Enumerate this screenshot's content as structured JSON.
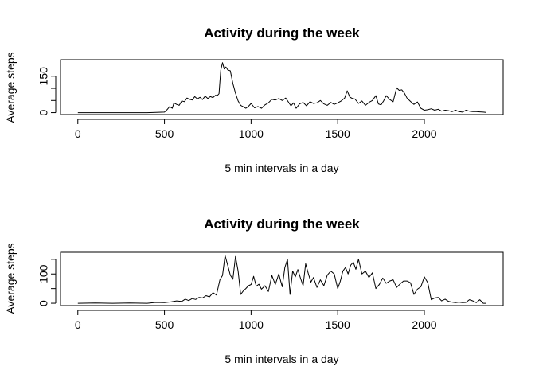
{
  "chart_data": [
    {
      "type": "line",
      "title": "Activity during the  week",
      "xlabel": "5 min intervals in a day",
      "ylabel": "Average steps",
      "xlim": [
        -100,
        2455
      ],
      "ylim": [
        -8,
        218
      ],
      "xticks": [
        0,
        500,
        1000,
        1500,
        2000
      ],
      "yticks": [
        0,
        50,
        100,
        150
      ],
      "yticklabels": [
        "0",
        "",
        "",
        "150"
      ],
      "grid": false,
      "series": [
        {
          "x": [
            0,
            100,
            200,
            300,
            400,
            500,
            515,
            530,
            545,
            555,
            570,
            585,
            600,
            615,
            630,
            645,
            660,
            675,
            690,
            705,
            720,
            735,
            750,
            765,
            780,
            795,
            805,
            815,
            825,
            835,
            845,
            855,
            865,
            880,
            895,
            910,
            925,
            940,
            955,
            970,
            985,
            1000,
            1020,
            1040,
            1060,
            1080,
            1100,
            1120,
            1140,
            1160,
            1180,
            1200,
            1215,
            1230,
            1245,
            1260,
            1280,
            1300,
            1320,
            1340,
            1360,
            1380,
            1400,
            1420,
            1440,
            1460,
            1480,
            1500,
            1520,
            1540,
            1555,
            1570,
            1585,
            1600,
            1620,
            1640,
            1660,
            1680,
            1700,
            1720,
            1735,
            1750,
            1765,
            1780,
            1800,
            1820,
            1840,
            1855,
            1870,
            1885,
            1900,
            1920,
            1940,
            1960,
            1980,
            2000,
            2020,
            2040,
            2060,
            2080,
            2100,
            2120,
            2140,
            2160,
            2180,
            2200,
            2220,
            2240,
            2260,
            2280,
            2300,
            2320,
            2340,
            2355
          ],
          "y": [
            0,
            0,
            0,
            0,
            0,
            2,
            12,
            25,
            18,
            40,
            34,
            30,
            48,
            45,
            60,
            55,
            52,
            66,
            57,
            63,
            54,
            68,
            58,
            66,
            62,
            72,
            70,
            78,
            175,
            206,
            180,
            188,
            176,
            172,
            120,
            80,
            48,
            30,
            24,
            18,
            26,
            38,
            20,
            25,
            18,
            32,
            40,
            55,
            52,
            58,
            50,
            60,
            44,
            28,
            40,
            18,
            36,
            42,
            28,
            45,
            38,
            40,
            50,
            36,
            30,
            42,
            34,
            40,
            48,
            60,
            90,
            64,
            58,
            56,
            38,
            48,
            30,
            42,
            50,
            70,
            36,
            32,
            48,
            70,
            54,
            45,
            102,
            92,
            94,
            80,
            60,
            46,
            34,
            44,
            18,
            10,
            12,
            16,
            10,
            14,
            6,
            10,
            8,
            4,
            10,
            4,
            2,
            10,
            6,
            4,
            4,
            3,
            2,
            1
          ]
        }
      ]
    },
    {
      "type": "line",
      "title": "Activity during the  week",
      "xlabel": "5 min intervals in a day",
      "ylabel": "Average steps",
      "xlim": [
        -100,
        2455
      ],
      "ylim": [
        -8,
        174
      ],
      "xticks": [
        0,
        500,
        1000,
        1500,
        2000
      ],
      "yticks": [
        0,
        50,
        100,
        150
      ],
      "yticklabels": [
        "0",
        "",
        "100",
        ""
      ],
      "grid": false,
      "series": [
        {
          "x": [
            0,
            100,
            200,
            300,
            400,
            450,
            500,
            540,
            570,
            600,
            620,
            640,
            660,
            680,
            700,
            720,
            740,
            760,
            780,
            800,
            820,
            835,
            850,
            865,
            880,
            895,
            910,
            925,
            940,
            955,
            970,
            985,
            1000,
            1015,
            1030,
            1045,
            1060,
            1080,
            1100,
            1120,
            1140,
            1160,
            1180,
            1195,
            1210,
            1225,
            1240,
            1255,
            1270,
            1285,
            1300,
            1315,
            1330,
            1345,
            1360,
            1380,
            1400,
            1420,
            1440,
            1460,
            1480,
            1500,
            1515,
            1530,
            1545,
            1560,
            1575,
            1590,
            1605,
            1620,
            1640,
            1660,
            1680,
            1700,
            1720,
            1740,
            1760,
            1780,
            1800,
            1820,
            1840,
            1860,
            1880,
            1900,
            1920,
            1940,
            1960,
            1980,
            2000,
            2020,
            2040,
            2060,
            2080,
            2100,
            2120,
            2140,
            2160,
            2180,
            2200,
            2220,
            2240,
            2260,
            2280,
            2300,
            2320,
            2340,
            2355
          ],
          "y": [
            0,
            1,
            0,
            1,
            0,
            3,
            2,
            5,
            8,
            6,
            14,
            9,
            16,
            13,
            20,
            18,
            26,
            22,
            36,
            28,
            80,
            95,
            163,
            130,
            96,
            82,
            160,
            110,
            30,
            42,
            50,
            60,
            64,
            92,
            58,
            65,
            48,
            60,
            40,
            95,
            64,
            100,
            56,
            122,
            150,
            30,
            110,
            90,
            115,
            86,
            60,
            135,
            102,
            72,
            88,
            54,
            80,
            60,
            96,
            110,
            100,
            50,
            75,
            110,
            122,
            100,
            130,
            140,
            116,
            150,
            100,
            110,
            88,
            104,
            50,
            64,
            86,
            68,
            76,
            80,
            54,
            66,
            76,
            76,
            70,
            30,
            48,
            56,
            90,
            70,
            12,
            18,
            20,
            8,
            14,
            6,
            4,
            2,
            4,
            2,
            3,
            12,
            8,
            2,
            12,
            0,
            0
          ]
        }
      ]
    }
  ]
}
